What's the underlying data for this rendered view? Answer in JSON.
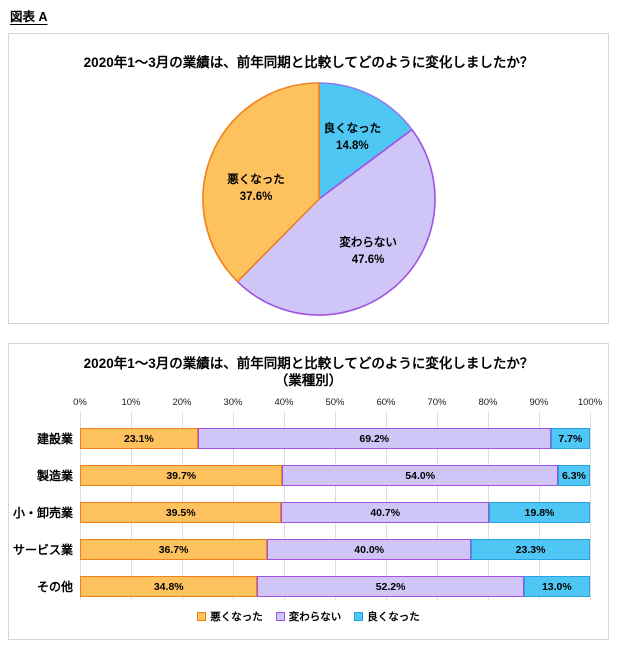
{
  "page": {
    "caption": "図表 A"
  },
  "series_colors": {
    "worse": {
      "label": "悪くなった",
      "fill": "#FDC25D",
      "border": "#F0821E"
    },
    "same": {
      "label": "変わらない",
      "fill": "#CFC5F6",
      "border": "#A152E0"
    },
    "better": {
      "label": "良くなった",
      "fill": "#4FC7F4",
      "border": "#8A7CEE",
      "bar_border": "#29A3DF"
    }
  },
  "chart_data": [
    {
      "type": "pie",
      "title": "2020年1～3月の業績は、前年同期と比較してどのように変化しましたか？",
      "start_angle_deg": 0,
      "direction": "clockwise",
      "slices": [
        {
          "label": "良くなった",
          "value": 14.8,
          "series": "better"
        },
        {
          "label": "変わらない",
          "value": 47.6,
          "series": "same"
        },
        {
          "label": "悪くなった",
          "value": 37.6,
          "series": "worse"
        }
      ]
    },
    {
      "type": "bar",
      "subtype": "horizontal-stacked",
      "title": "2020年1～3月の業績は、前年同期と比較してどのように変化しましたか？",
      "subtitle": "（業種別）",
      "categories": [
        "建設業",
        "製造業",
        "小・卸売業",
        "サービス業",
        "その他"
      ],
      "series": [
        {
          "name": "悪くなった",
          "key": "worse",
          "values": [
            23.1,
            39.7,
            39.5,
            36.7,
            34.8
          ]
        },
        {
          "name": "変わらない",
          "key": "same",
          "values": [
            69.2,
            54.0,
            40.7,
            40.0,
            52.2
          ]
        },
        {
          "name": "良くなった",
          "key": "better",
          "values": [
            7.7,
            6.3,
            19.8,
            23.3,
            13.0
          ]
        }
      ],
      "x_ticks": [
        "0%",
        "10%",
        "20%",
        "30%",
        "40%",
        "50%",
        "60%",
        "70%",
        "80%",
        "90%",
        "100%"
      ],
      "xlim": [
        0,
        100
      ],
      "grid": true,
      "legend": [
        "悪くなった",
        "変わらない",
        "良くなった"
      ],
      "legend_position": "bottom"
    }
  ]
}
